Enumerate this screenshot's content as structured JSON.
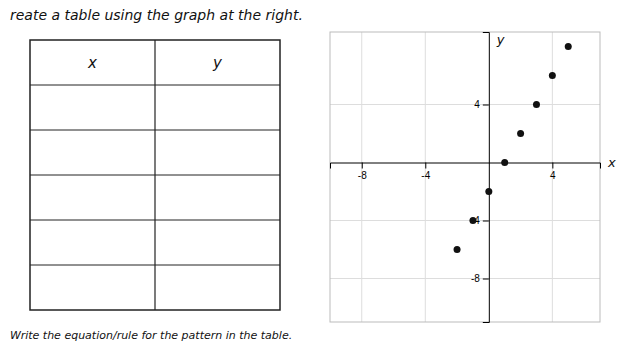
{
  "chart_data": {
    "type": "scatter",
    "title": "reate a table using the graph at the right.",
    "annotations": [
      "Write the equation/rule for the pattern in the table."
    ],
    "table": {
      "columns": [
        "x",
        "y"
      ],
      "rows": 5
    },
    "x": [
      -2,
      -1,
      0,
      1,
      2,
      3,
      4,
      5
    ],
    "values": [
      -6,
      -4,
      -2,
      0,
      2,
      4,
      6,
      8
    ],
    "color": "#111111",
    "xlim": [
      -10,
      7
    ],
    "ylim": [
      -11,
      9
    ],
    "xticks": [
      -8,
      -4,
      4
    ],
    "yticks": [
      -8,
      -4,
      4
    ],
    "xlabel": "x",
    "ylabel": "y",
    "grid": true
  }
}
